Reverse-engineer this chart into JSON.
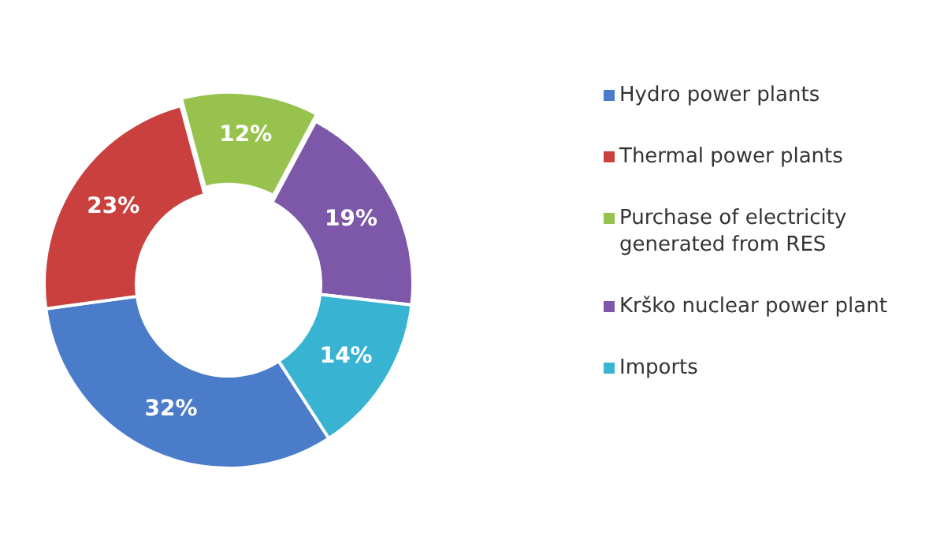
{
  "chart_data": {
    "type": "donut",
    "categories": [
      "Hydro power plants",
      "Thermal power plants",
      "Purchase of electricity generated from RES",
      "Krško nuclear power plant",
      "Imports"
    ],
    "values": [
      32,
      23,
      12,
      19,
      14
    ],
    "colors": [
      "#4a7cc9",
      "#c9403f",
      "#96c24d",
      "#7d58a8",
      "#38b4d2"
    ],
    "value_labels": [
      "32%",
      "23%",
      "12%",
      "19%",
      "14%"
    ],
    "legend": "right"
  }
}
